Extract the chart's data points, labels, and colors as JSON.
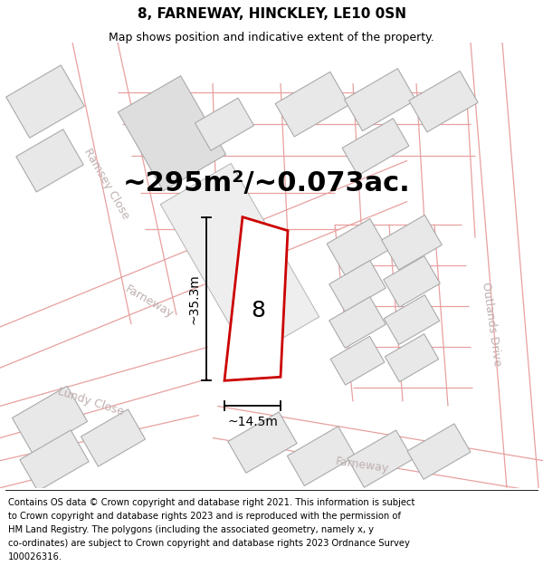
{
  "title": "8, FARNEWAY, HINCKLEY, LE10 0SN",
  "subtitle": "Map shows position and indicative extent of the property.",
  "area_text": "~295m²/~0.073ac.",
  "width_label": "~14.5m",
  "height_label": "~35.3m",
  "number_label": "8",
  "map_bg": "#ffffff",
  "block_fill": "#e8e8e8",
  "block_edge": "#aaaaaa",
  "parcel_line_color": "#e8a0a0",
  "road_line_color": "#e8a0a0",
  "red_color": "#cc0000",
  "title_fontsize": 11,
  "subtitle_fontsize": 9,
  "footer_fontsize": 7.2,
  "area_fontsize": 22,
  "label_fontsize": 10,
  "number_fontsize": 18,
  "street_label_color": "#c0b0b0",
  "street_label_fontsize": 9,
  "footer_lines": [
    "Contains OS data © Crown copyright and database right 2021. This information is subject",
    "to Crown copyright and database rights 2023 and is reproduced with the permission of",
    "HM Land Registry. The polygons (including the associated geometry, namely x, y",
    "co-ordinates) are subject to Crown copyright and database rights 2023 Ordnance Survey",
    "100026316."
  ]
}
